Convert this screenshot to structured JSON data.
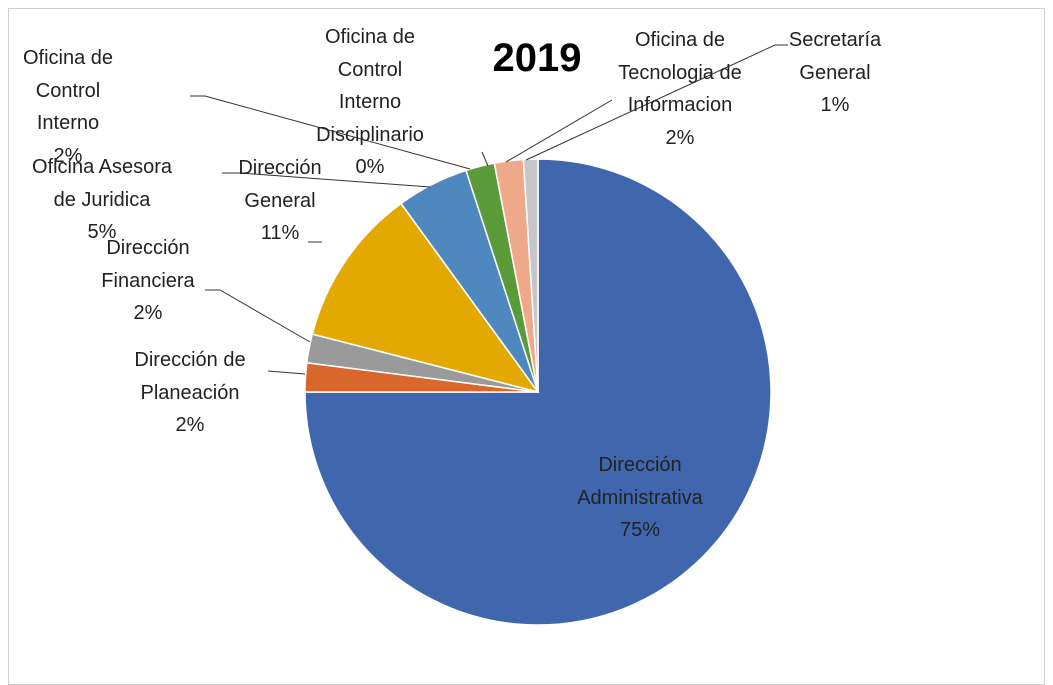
{
  "chart_data": {
    "type": "pie",
    "title": "2019",
    "categories": [
      "Dirección\nAdministrativa",
      "Dirección de\nPlaneación",
      "Dirección\nFinanciera",
      "Dirección\nGeneral",
      "Oficina Asesora\nde Juridica",
      "Oficina de\nControl\nInterno",
      "Oficina de\nControl\nInterno\nDisciplinario",
      "Oficina de\nTecnologia de\nInformacion",
      "Secretaría\nGeneral"
    ],
    "values": [
      75,
      2,
      2,
      11,
      5,
      2,
      0,
      2,
      1
    ],
    "value_labels": [
      "75%",
      "2%",
      "2%",
      "11%",
      "5%",
      "2%",
      "0%",
      "2%",
      "1%"
    ],
    "colors": [
      "#4066ae",
      "#d9672b",
      "#9a9a9a",
      "#e3a900",
      "#4f87bf",
      "#5b9a3b",
      "#8ea0d6",
      "#f0a88a",
      "#c6c6c6"
    ]
  }
}
